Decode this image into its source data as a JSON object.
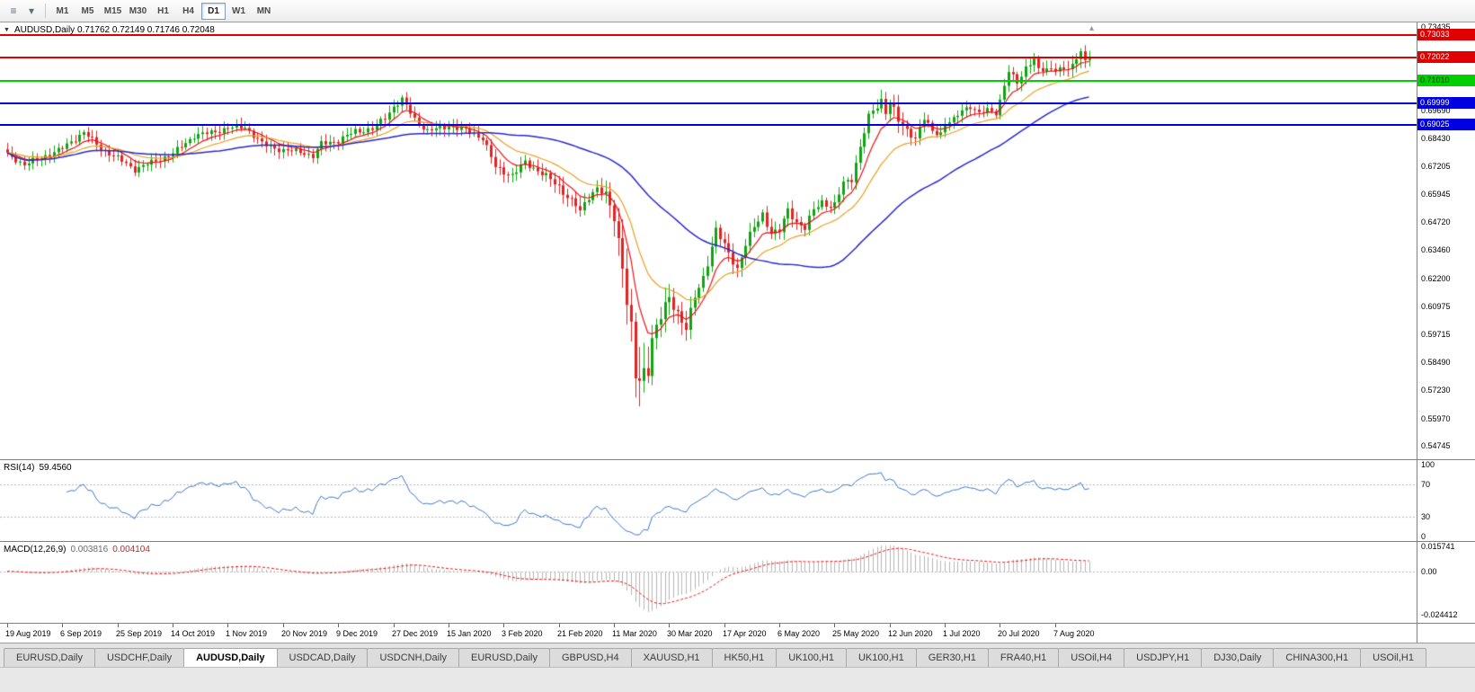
{
  "toolbar": {
    "icons": [
      {
        "name": "menu-icon",
        "glyph": "≡"
      },
      {
        "name": "dropdown-icon",
        "glyph": "▾"
      }
    ],
    "timeframes": {
      "items": [
        "M1",
        "M5",
        "M15",
        "M30",
        "H1",
        "H4",
        "D1",
        "W1",
        "MN"
      ],
      "active": "D1"
    }
  },
  "chart": {
    "header": "AUDUSD,Daily 0.71762 0.72149 0.71746 0.72048",
    "shift_marker": "▴",
    "dropdown_glyph": "▼"
  },
  "indicators": {
    "rsi": {
      "label": "RSI(14)",
      "value": "59.4560"
    },
    "macd": {
      "label": "MACD(12,26,9)",
      "value_main": "0.003816",
      "value_signal": "0.004104"
    }
  },
  "tabs": {
    "active_index": 2,
    "items": [
      "EURUSD,Daily",
      "USDCHF,Daily",
      "AUDUSD,Daily",
      "USDCAD,Daily",
      "USDCNH,Daily",
      "EURUSD,Daily",
      "GBPUSD,H4",
      "XAUUSD,H1",
      "HK50,H1",
      "UK100,H1",
      "UK100,H1",
      "GER30,H1",
      "FRA40,H1",
      "USOil,H4",
      "USDJPY,H1",
      "DJ30,Daily",
      "CHINA300,H1",
      "USOil,H1"
    ]
  },
  "chart_data": {
    "type": "candlestick",
    "symbol": "AUDUSD",
    "period": "Daily",
    "ohlc_display": {
      "open": 0.71762,
      "high": 0.72149,
      "low": 0.71746,
      "close": 0.72048
    },
    "count": 256,
    "ylim": [
      0.5416,
      0.736
    ],
    "clamp": [
      0.551,
      0.728
    ],
    "up_color": "#12a312",
    "down_color": "#e02424",
    "price_axis_ticks": [
      "0.73435",
      "0.69690",
      "0.68430",
      "0.67205",
      "0.65945",
      "0.64720",
      "0.63460",
      "0.62200",
      "0.60975",
      "0.59715",
      "0.58490",
      "0.57230",
      "0.55970",
      "0.54745"
    ],
    "hlines": [
      {
        "price": 0.73033,
        "label": "0.73033",
        "color": "#e00000",
        "text_color": "#ffffff"
      },
      {
        "price": 0.72022,
        "label": "0.72022",
        "color": "#e00000",
        "text_color": "#ffffff"
      },
      {
        "price": 0.7101,
        "label": "0.71010",
        "color": "#00d000",
        "text_color": "#003300"
      },
      {
        "price": 0.69999,
        "label": "0.69999",
        "color": "#0000e0",
        "text_color": "#ffffff"
      },
      {
        "price": 0.69025,
        "label": "0.69025",
        "color": "#0000e0",
        "text_color": "#ffffff"
      }
    ],
    "moving_averages": [
      {
        "name": "fast-ma",
        "type": "ema",
        "period": 8,
        "color": "#ee1111",
        "width": 1.2
      },
      {
        "name": "mid-ma",
        "type": "ema",
        "period": 20,
        "color": "#e8a020",
        "width": 1.2
      },
      {
        "name": "slow-ma",
        "type": "sma",
        "period": 50,
        "color": "#2828c8",
        "width": 1.5
      }
    ],
    "x_labels": [
      "19 Aug 2019",
      "6 Sep 2019",
      "25 Sep 2019",
      "14 Oct 2019",
      "1 Nov 2019",
      "20 Nov 2019",
      "9 Dec 2019",
      "27 Dec 2019",
      "15 Jan 2020",
      "3 Feb 2020",
      "21 Feb 2020",
      "11 Mar 2020",
      "30 Mar 2020",
      "17 Apr 2020",
      "6 May 2020",
      "25 May 2020",
      "12 Jun 2020",
      "1 Jul 2020",
      "20 Jul 2020",
      "7 Aug 2020"
    ],
    "x_label_every": 13,
    "close_anchors": [
      [
        0,
        0.677
      ],
      [
        4,
        0.6728
      ],
      [
        8,
        0.6758
      ],
      [
        13,
        0.68
      ],
      [
        18,
        0.6872
      ],
      [
        22,
        0.68
      ],
      [
        26,
        0.6756
      ],
      [
        30,
        0.6706
      ],
      [
        35,
        0.6745
      ],
      [
        39,
        0.6776
      ],
      [
        44,
        0.6856
      ],
      [
        48,
        0.687
      ],
      [
        52,
        0.689
      ],
      [
        56,
        0.6895
      ],
      [
        60,
        0.682
      ],
      [
        65,
        0.679
      ],
      [
        69,
        0.6786
      ],
      [
        72,
        0.6764
      ],
      [
        74,
        0.682
      ],
      [
        78,
        0.6834
      ],
      [
        82,
        0.6876
      ],
      [
        86,
        0.6886
      ],
      [
        89,
        0.6936
      ],
      [
        91,
        0.6986
      ],
      [
        93,
        0.7016
      ],
      [
        96,
        0.693
      ],
      [
        99,
        0.6876
      ],
      [
        104,
        0.69
      ],
      [
        108,
        0.688
      ],
      [
        112,
        0.6846
      ],
      [
        115,
        0.6716
      ],
      [
        117,
        0.6696
      ],
      [
        119,
        0.668
      ],
      [
        122,
        0.6736
      ],
      [
        126,
        0.669
      ],
      [
        130,
        0.6627
      ],
      [
        134,
        0.6546
      ],
      [
        135,
        0.6515
      ],
      [
        137,
        0.6586
      ],
      [
        139,
        0.6626
      ],
      [
        141,
        0.6586
      ],
      [
        143,
        0.649
      ],
      [
        145,
        0.629
      ],
      [
        146,
        0.612
      ],
      [
        147,
        0.599
      ],
      [
        148,
        0.578
      ],
      [
        149,
        0.5745
      ],
      [
        150,
        0.58
      ],
      [
        151,
        0.583
      ],
      [
        152,
        0.596
      ],
      [
        154,
        0.605
      ],
      [
        156,
        0.613
      ],
      [
        158,
        0.607
      ],
      [
        160,
        0.6
      ],
      [
        162,
        0.6135
      ],
      [
        164,
        0.6225
      ],
      [
        167,
        0.6435
      ],
      [
        169,
        0.6365
      ],
      [
        171,
        0.63
      ],
      [
        172,
        0.6265
      ],
      [
        174,
        0.637
      ],
      [
        176,
        0.645
      ],
      [
        178,
        0.651
      ],
      [
        180,
        0.642
      ],
      [
        182,
        0.643
      ],
      [
        184,
        0.653
      ],
      [
        186,
        0.647
      ],
      [
        188,
        0.644
      ],
      [
        190,
        0.653
      ],
      [
        192,
        0.6565
      ],
      [
        194,
        0.6535
      ],
      [
        195,
        0.6545
      ],
      [
        197,
        0.665
      ],
      [
        199,
        0.6665
      ],
      [
        201,
        0.68
      ],
      [
        203,
        0.694
      ],
      [
        204,
        0.697
      ],
      [
        206,
        0.7015
      ],
      [
        207,
        0.696
      ],
      [
        208,
        0.7
      ],
      [
        210,
        0.6925
      ],
      [
        212,
        0.6885
      ],
      [
        214,
        0.684
      ],
      [
        216,
        0.693
      ],
      [
        218,
        0.688
      ],
      [
        220,
        0.6866
      ],
      [
        221,
        0.6905
      ],
      [
        223,
        0.6925
      ],
      [
        225,
        0.6975
      ],
      [
        227,
        0.6985
      ],
      [
        229,
        0.695
      ],
      [
        231,
        0.6975
      ],
      [
        233,
        0.696
      ],
      [
        234,
        0.701
      ],
      [
        236,
        0.714
      ],
      [
        238,
        0.7095
      ],
      [
        240,
        0.716
      ],
      [
        242,
        0.7195
      ],
      [
        243,
        0.7143
      ],
      [
        245,
        0.7155
      ],
      [
        247,
        0.7156
      ],
      [
        249,
        0.7145
      ],
      [
        251,
        0.7165
      ],
      [
        253,
        0.7245
      ],
      [
        254,
        0.7185
      ],
      [
        255,
        0.7205
      ]
    ],
    "vol_anchors": [
      [
        0,
        0.0042
      ],
      [
        90,
        0.0045
      ],
      [
        120,
        0.005
      ],
      [
        140,
        0.006
      ],
      [
        144,
        0.011
      ],
      [
        146,
        0.013
      ],
      [
        148,
        0.016
      ],
      [
        149,
        0.026
      ],
      [
        150,
        0.016
      ],
      [
        152,
        0.012
      ],
      [
        156,
        0.0085
      ],
      [
        162,
        0.007
      ],
      [
        170,
        0.006
      ],
      [
        185,
        0.005
      ],
      [
        200,
        0.0048
      ],
      [
        208,
        0.0065
      ],
      [
        210,
        0.0075
      ],
      [
        212,
        0.005
      ],
      [
        230,
        0.0042
      ],
      [
        253,
        0.0055
      ],
      [
        255,
        0.0045
      ]
    ],
    "rsi": {
      "period": 14,
      "ylim": [
        0,
        100
      ],
      "color": "#3c78c8",
      "level_lines": [
        70,
        30
      ],
      "axis_ticks": [
        {
          "label": "100",
          "value": 100
        },
        {
          "label": "70",
          "value": 70
        },
        {
          "label": "30",
          "value": 30
        },
        {
          "label": "0",
          "value": 0
        }
      ]
    },
    "macd": {
      "fast": 12,
      "slow": 26,
      "signal": 9,
      "ylim": [
        -0.029,
        0.0166
      ],
      "hist_color": "#b4b4b4",
      "signal_color": "#ee1111",
      "axis_ticks": [
        {
          "label": "0.015741",
          "value": 0.015741
        },
        {
          "label": "0.00",
          "value": 0
        },
        {
          "label": "-0.024412",
          "value": -0.024412
        }
      ]
    }
  }
}
